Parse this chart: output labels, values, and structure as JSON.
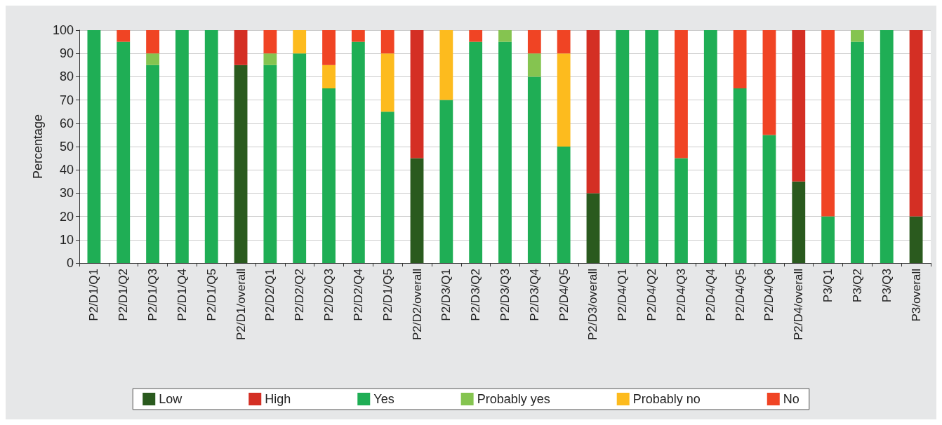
{
  "chart_data": {
    "type": "bar",
    "stacked": true,
    "ylabel": "Percentage",
    "ylim": [
      0,
      100
    ],
    "yticks": [
      0,
      10,
      20,
      30,
      40,
      50,
      60,
      70,
      80,
      90,
      100
    ],
    "grid": "y",
    "legend": "bottom",
    "categories": [
      "P2/D1/Q1",
      "P2/D1/Q2",
      "P2/D1/Q3",
      "P2/D1/Q4",
      "P2/D1/Q5",
      "P2/D1/overall",
      "P2/D2/Q1",
      "P2/D2/Q2",
      "P2/D2/Q3",
      "P2/D2/Q4",
      "P2/D1/Q5",
      "P2/D2/overall",
      "P2/D3/Q1",
      "P2/D3/Q2",
      "P2/D3/Q3",
      "P2/D3/Q4",
      "P2/D4/Q5",
      "P2/D3/overall",
      "P2/D4/Q1",
      "P2/D4/Q2",
      "P2/D4/Q3",
      "P2/D4/Q4",
      "P2/D4/Q5",
      "P2/D4/Q6",
      "P2/D4/overall",
      "P3/Q1",
      "P3/Q2",
      "P3/Q3",
      "P3/overall"
    ],
    "series": [
      {
        "name": "Low",
        "color": "#2a5a1e",
        "values": [
          null,
          null,
          null,
          null,
          null,
          85,
          null,
          null,
          null,
          null,
          null,
          45,
          null,
          null,
          null,
          null,
          null,
          30,
          null,
          null,
          null,
          null,
          null,
          null,
          35,
          null,
          null,
          null,
          20
        ]
      },
      {
        "name": "High",
        "color": "#d42f24",
        "values": [
          null,
          null,
          null,
          null,
          null,
          15,
          null,
          null,
          null,
          null,
          null,
          55,
          null,
          null,
          null,
          null,
          null,
          70,
          null,
          null,
          null,
          null,
          null,
          null,
          65,
          null,
          null,
          null,
          80
        ]
      },
      {
        "name": "Yes",
        "color": "#1fae55",
        "values": [
          100,
          95,
          85,
          100,
          100,
          null,
          85,
          90,
          75,
          95,
          65,
          null,
          70,
          95,
          95,
          80,
          50,
          null,
          100,
          100,
          45,
          100,
          75,
          55,
          null,
          20,
          95,
          100,
          null
        ]
      },
      {
        "name": "Probably yes",
        "color": "#85c450",
        "values": [
          null,
          null,
          5,
          null,
          null,
          null,
          5,
          null,
          null,
          null,
          null,
          null,
          null,
          null,
          5,
          10,
          null,
          null,
          null,
          null,
          null,
          null,
          null,
          null,
          null,
          null,
          5,
          null,
          null
        ]
      },
      {
        "name": "Probably no",
        "color": "#fdbb1e",
        "values": [
          null,
          null,
          null,
          null,
          null,
          null,
          null,
          10,
          10,
          null,
          25,
          null,
          30,
          null,
          null,
          null,
          40,
          null,
          null,
          null,
          null,
          null,
          null,
          null,
          null,
          null,
          null,
          null,
          null
        ]
      },
      {
        "name": "No",
        "color": "#f04424",
        "values": [
          null,
          5,
          10,
          null,
          null,
          null,
          10,
          null,
          15,
          5,
          10,
          null,
          null,
          5,
          null,
          10,
          10,
          null,
          null,
          null,
          55,
          null,
          25,
          45,
          null,
          80,
          null,
          null,
          null
        ]
      }
    ]
  }
}
